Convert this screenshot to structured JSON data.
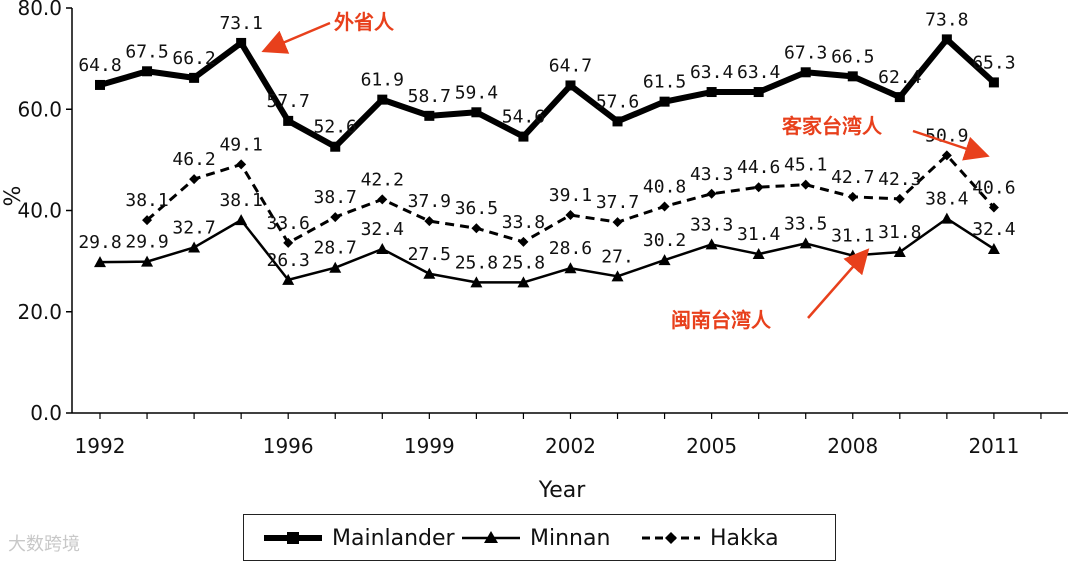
{
  "chart_data": {
    "type": "line",
    "xlabel": "Year",
    "ylabel": "%",
    "ylim": [
      0,
      80
    ],
    "xlim": [
      1992,
      2013
    ],
    "y_ticks": [
      "0.0",
      "20.0",
      "40.0",
      "60.0",
      "80.0"
    ],
    "x_ticks": [
      "1992",
      "1996",
      "1999",
      "2002",
      "2005",
      "2008",
      "2011"
    ],
    "grid": false,
    "legend_position": "bottom",
    "series": [
      {
        "name": "Mainlander",
        "color": "#000000",
        "style": "thick-solid-square",
        "x": [
          1992,
          1993,
          1994,
          1995,
          1996,
          1997,
          1998,
          1999,
          2000,
          2001,
          2002,
          2003,
          2004,
          2005,
          2006,
          2007,
          2008,
          2009,
          2010,
          2011,
          2012
        ],
        "values": [
          64.8,
          67.5,
          66.2,
          73.1,
          57.7,
          52.6,
          61.9,
          58.7,
          59.4,
          54.6,
          64.7,
          57.6,
          61.5,
          63.4,
          63.4,
          67.3,
          66.5,
          62.4,
          73.8,
          65.3,
          null
        ],
        "labels": [
          "64.8",
          "67.5",
          "66.2",
          "73.1",
          "57.7",
          "52.6",
          "61.9",
          "58.7",
          "59.4",
          "54.6",
          "64.7",
          "57.6",
          "61.5",
          "63.4",
          "63.4",
          "67.3",
          "66.5",
          "62.4",
          "73.8",
          "65.3"
        ]
      },
      {
        "name": "Minnan",
        "color": "#000000",
        "style": "solid-triangle",
        "x": [
          1992,
          1993,
          1994,
          1995,
          1996,
          1997,
          1998,
          1999,
          2000,
          2001,
          2002,
          2003,
          2004,
          2005,
          2006,
          2007,
          2008,
          2009,
          2010,
          2011,
          2012
        ],
        "values": [
          29.8,
          29.9,
          32.7,
          38.1,
          26.3,
          28.7,
          32.4,
          27.5,
          25.8,
          25.8,
          28.6,
          27.0,
          30.2,
          33.3,
          31.4,
          33.5,
          31.1,
          31.8,
          38.4,
          32.4,
          null
        ],
        "labels": [
          "29.8",
          "29.9",
          "32.7",
          "38.1",
          "26.3",
          "28.7",
          "32.4",
          "27.5",
          "25.8",
          "25.8",
          "28.6",
          "27.",
          "30.2",
          "33.3",
          "31.4",
          "33.5",
          "31.1",
          "31.8",
          "38.4",
          "32.4"
        ]
      },
      {
        "name": "Hakka",
        "color": "#000000",
        "style": "dashed-diamond",
        "x": [
          1993,
          1994,
          1995,
          1996,
          1997,
          1998,
          1999,
          2000,
          2001,
          2002,
          2003,
          2004,
          2005,
          2006,
          2007,
          2008,
          2009,
          2010,
          2011,
          2012
        ],
        "values": [
          38.1,
          46.2,
          49.1,
          33.6,
          38.7,
          42.2,
          37.9,
          36.5,
          33.8,
          39.1,
          37.7,
          40.8,
          43.3,
          44.6,
          45.1,
          42.7,
          42.3,
          50.9,
          40.6,
          null
        ],
        "labels": [
          "38.1",
          "46.2",
          "49.1",
          "33.6",
          "38.7",
          "42.2",
          "37.9",
          "36.5",
          "33.8",
          "39.1",
          "37.7",
          "40.8",
          "43.3",
          "44.6",
          "45.1",
          "42.7",
          "42.3",
          "50.9",
          "40.6"
        ]
      }
    ],
    "annotations": [
      {
        "text": "外省人",
        "color": "#e8401c",
        "target_series": "Mainlander",
        "target_x": 1996
      },
      {
        "text": "客家台湾人",
        "color": "#e8401c",
        "target_series": "Hakka",
        "target_x": 2011
      },
      {
        "text": "闽南台湾人",
        "color": "#e8401c",
        "target_series": "Minnan",
        "target_x": 2008
      }
    ]
  },
  "legend": {
    "items": [
      {
        "label": "Mainlander"
      },
      {
        "label": "Minnan"
      },
      {
        "label": "Hakka"
      }
    ]
  },
  "watermark": "大数跨境"
}
